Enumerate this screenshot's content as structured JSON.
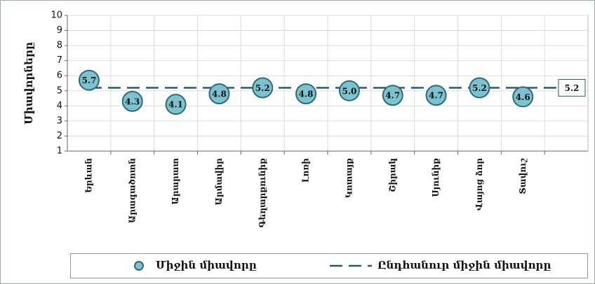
{
  "chart_data": {
    "type": "scatter",
    "y_label": "Միավորները",
    "categories": [
      "Երևան",
      "Արագածոտն",
      "Արարատ",
      "Արմավիր",
      "Գեղարքունիք",
      "Լոռի",
      "Կոտայք",
      "Շիրակ",
      "Սյունիք",
      "Վայոց ձոր",
      "Տավուշ",
      null
    ],
    "series": [
      {
        "name": "Միջին միավորը",
        "color": "#7cc3cf",
        "values": [
          5.7,
          4.3,
          4.1,
          4.8,
          5.2,
          4.8,
          5.0,
          4.7,
          4.7,
          5.2,
          4.6,
          null
        ],
        "value_labels": [
          "5.7",
          "4.3",
          "4.1",
          "4.8",
          "5.2",
          "4.8",
          "5.0",
          "4.7",
          "4.7",
          "5.2",
          "4.6",
          null
        ]
      }
    ],
    "average": {
      "name": "Ընդհանուր միջին միավորը",
      "color": "#2b5a66",
      "value": 5.2,
      "value_label": "5.2"
    },
    "ylim": [
      1,
      10
    ],
    "yticks": [
      1,
      2,
      3,
      4,
      5,
      6,
      7,
      8,
      9,
      10
    ],
    "grid": true
  }
}
